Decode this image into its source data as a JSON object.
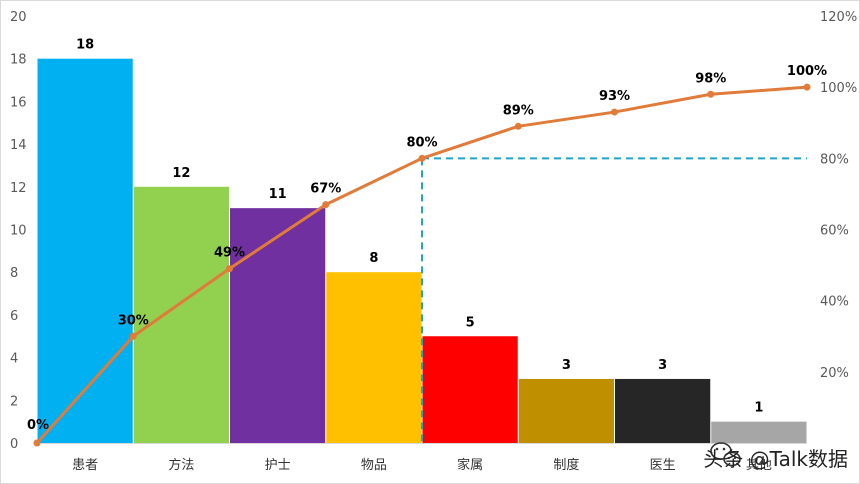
{
  "chart_data": {
    "type": "bar",
    "categories": [
      "患者",
      "方法",
      "护士",
      "物品",
      "家属",
      "制度",
      "医生",
      "其他"
    ],
    "values": [
      18,
      12,
      11,
      8,
      5,
      3,
      3,
      1
    ],
    "bar_colors": [
      "#00b0f0",
      "#92d050",
      "#7030a0",
      "#ffc000",
      "#ff0000",
      "#bf8f00",
      "#262626",
      "#a6a6a6"
    ],
    "ylim": [
      0,
      20
    ],
    "yticks": [
      0,
      2,
      4,
      6,
      8,
      10,
      12,
      14,
      16,
      18,
      20
    ],
    "y2lim": [
      0,
      1.2
    ],
    "y2ticks": [
      "",
      "20%",
      "40%",
      "60%",
      "80%",
      "100%",
      "120%"
    ],
    "cumulative": {
      "values": [
        0,
        0.3,
        0.49,
        0.67,
        0.8,
        0.89,
        0.93,
        0.98,
        1.0
      ],
      "labels": [
        "0%",
        "30%",
        "49%",
        "67%",
        "80%",
        "89%",
        "93%",
        "98%",
        "100%"
      ],
      "color": "#e07b39"
    },
    "threshold": {
      "value": 0.8,
      "at_boundary": 4,
      "color": "#1fa3c8"
    },
    "grid": false,
    "legend": "none"
  },
  "watermark": {
    "text": "头条 @Talk数据",
    "icon": "wechat-icon"
  }
}
